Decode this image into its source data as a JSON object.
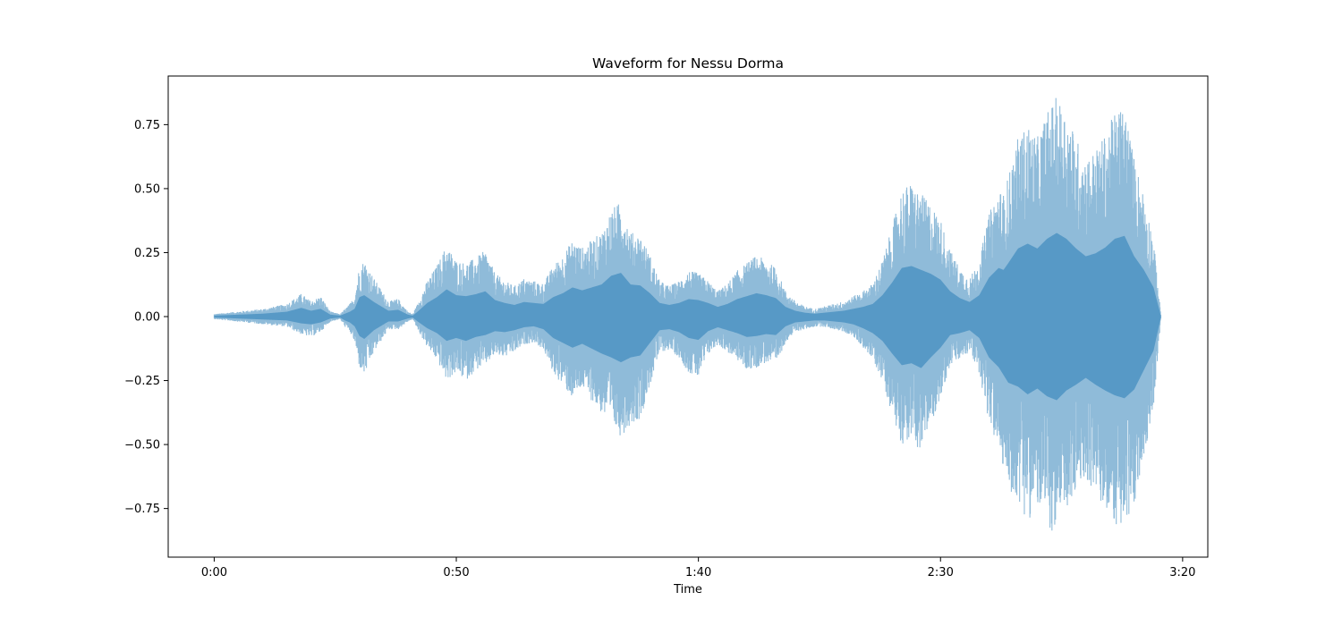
{
  "chart_data": {
    "type": "area",
    "title": "Waveform for Nessu Dorma",
    "xlabel": "Time",
    "ylabel": "",
    "xlim": [
      -9.5,
      205.2
    ],
    "ylim": [
      -0.94,
      0.94
    ],
    "x_ticks": [
      {
        "value": 0,
        "label": "0:00"
      },
      {
        "value": 50,
        "label": "0:50"
      },
      {
        "value": 100,
        "label": "1:40"
      },
      {
        "value": 150,
        "label": "2:30"
      },
      {
        "value": 200,
        "label": "3:20"
      }
    ],
    "y_ticks": [
      {
        "value": 0.75,
        "label": "0.75"
      },
      {
        "value": 0.5,
        "label": "0.50"
      },
      {
        "value": 0.25,
        "label": "0.25"
      },
      {
        "value": 0.0,
        "label": "0.00"
      },
      {
        "value": -0.25,
        "label": "−0.25"
      },
      {
        "value": -0.5,
        "label": "−0.50"
      },
      {
        "value": -0.75,
        "label": "−0.75"
      }
    ],
    "grid": false,
    "fill_color": "#1f77b4",
    "fill_opacity": 0.5,
    "duration_seconds": 195.5,
    "series": [
      {
        "name": "",
        "envelope_time": [
          0,
          5,
          10,
          15,
          18,
          20,
          22,
          24,
          26,
          27,
          28,
          29,
          30,
          31,
          33,
          36,
          38,
          40,
          41,
          42,
          44,
          46,
          48,
          50,
          52,
          54,
          56,
          58,
          60,
          62,
          64,
          66,
          68,
          70,
          72,
          74,
          76,
          78,
          80,
          82,
          84,
          86,
          88,
          90,
          92,
          94,
          96,
          98,
          100,
          102,
          104,
          106,
          108,
          110,
          112,
          114,
          116,
          118,
          120,
          122,
          124,
          126,
          128,
          130,
          132,
          134,
          136,
          138,
          140,
          142,
          144,
          146,
          148,
          150,
          152,
          154,
          156,
          158,
          160,
          162,
          163,
          164,
          166,
          168,
          170,
          172,
          174,
          176,
          178,
          180,
          182,
          184,
          186,
          188,
          190,
          192,
          194,
          195.5
        ],
        "envelope_peak": [
          0.01,
          0.02,
          0.03,
          0.05,
          0.09,
          0.06,
          0.08,
          0.02,
          0.01,
          0.03,
          0.05,
          0.08,
          0.2,
          0.22,
          0.15,
          0.06,
          0.07,
          0.02,
          0.01,
          0.05,
          0.14,
          0.2,
          0.28,
          0.22,
          0.21,
          0.23,
          0.26,
          0.17,
          0.14,
          0.12,
          0.15,
          0.14,
          0.13,
          0.2,
          0.24,
          0.3,
          0.27,
          0.3,
          0.33,
          0.42,
          0.45,
          0.33,
          0.32,
          0.24,
          0.14,
          0.12,
          0.14,
          0.18,
          0.17,
          0.14,
          0.1,
          0.13,
          0.18,
          0.21,
          0.24,
          0.22,
          0.19,
          0.1,
          0.06,
          0.04,
          0.03,
          0.04,
          0.05,
          0.06,
          0.08,
          0.1,
          0.13,
          0.22,
          0.35,
          0.5,
          0.52,
          0.48,
          0.44,
          0.38,
          0.26,
          0.19,
          0.15,
          0.22,
          0.4,
          0.5,
          0.48,
          0.55,
          0.7,
          0.75,
          0.7,
          0.8,
          0.86,
          0.8,
          0.7,
          0.62,
          0.65,
          0.71,
          0.8,
          0.83,
          0.62,
          0.48,
          0.3,
          0.01
        ],
        "envelope_trough": [
          -0.01,
          -0.02,
          -0.03,
          -0.04,
          -0.07,
          -0.08,
          -0.06,
          -0.02,
          -0.01,
          -0.04,
          -0.06,
          -0.1,
          -0.2,
          -0.23,
          -0.14,
          -0.05,
          -0.05,
          -0.02,
          -0.01,
          -0.05,
          -0.12,
          -0.17,
          -0.25,
          -0.22,
          -0.25,
          -0.21,
          -0.19,
          -0.15,
          -0.16,
          -0.14,
          -0.11,
          -0.1,
          -0.13,
          -0.22,
          -0.27,
          -0.32,
          -0.28,
          -0.33,
          -0.38,
          -0.42,
          -0.47,
          -0.42,
          -0.4,
          -0.27,
          -0.14,
          -0.13,
          -0.16,
          -0.22,
          -0.24,
          -0.15,
          -0.11,
          -0.14,
          -0.17,
          -0.21,
          -0.2,
          -0.18,
          -0.19,
          -0.1,
          -0.06,
          -0.05,
          -0.04,
          -0.04,
          -0.05,
          -0.06,
          -0.08,
          -0.12,
          -0.17,
          -0.25,
          -0.38,
          -0.5,
          -0.48,
          -0.53,
          -0.42,
          -0.32,
          -0.19,
          -0.17,
          -0.14,
          -0.22,
          -0.42,
          -0.52,
          -0.6,
          -0.68,
          -0.72,
          -0.8,
          -0.74,
          -0.82,
          -0.86,
          -0.76,
          -0.7,
          -0.63,
          -0.7,
          -0.76,
          -0.81,
          -0.84,
          -0.75,
          -0.55,
          -0.35,
          -0.01
        ]
      }
    ]
  }
}
